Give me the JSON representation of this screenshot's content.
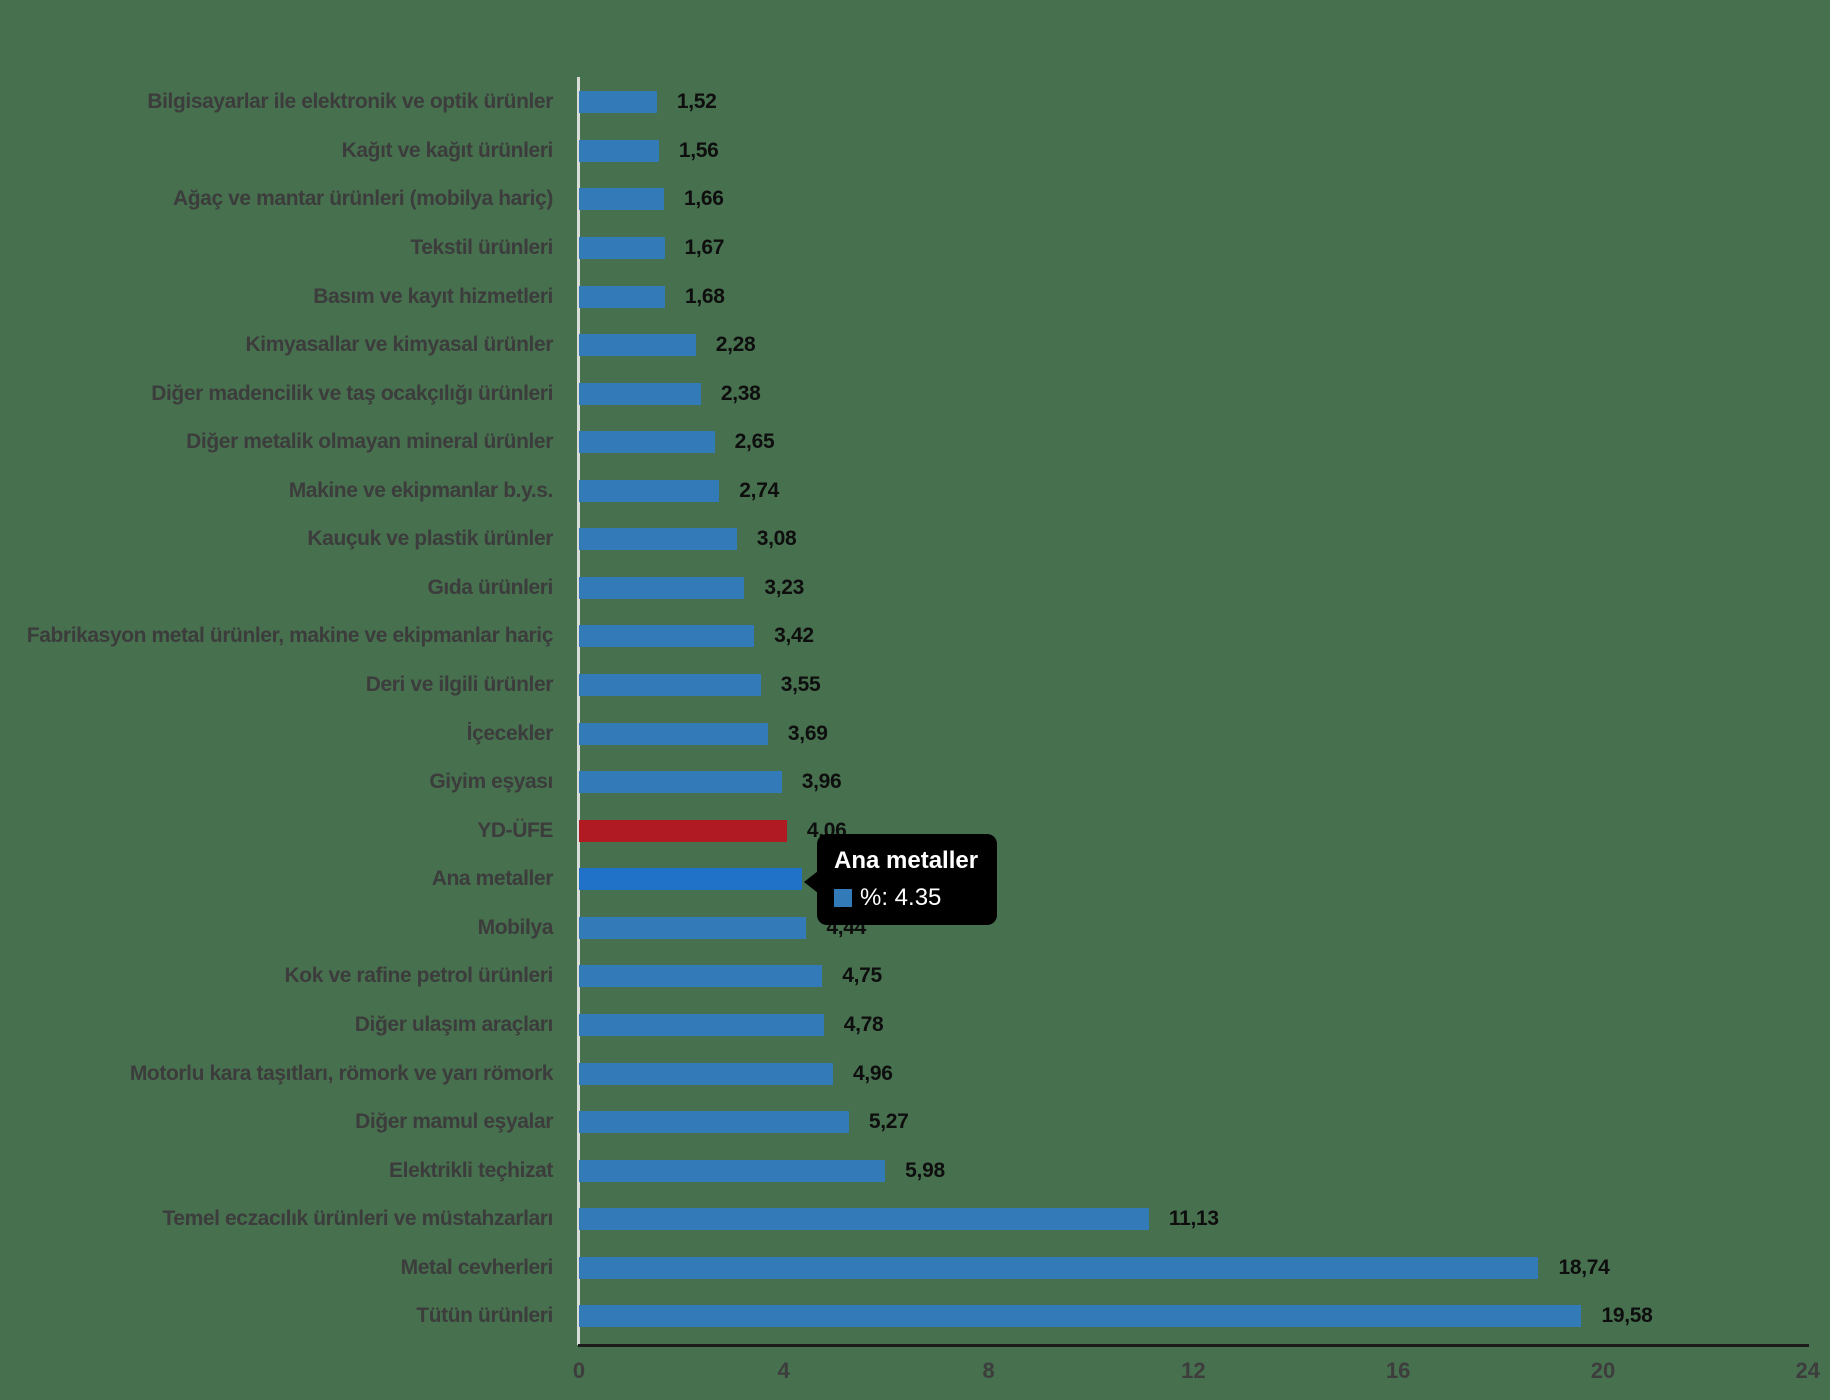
{
  "chart_data": {
    "type": "bar",
    "orientation": "horizontal",
    "title": "",
    "xlabel": "",
    "ylabel": "",
    "xlim": [
      0,
      24
    ],
    "x_ticks": [
      0,
      4,
      8,
      12,
      16,
      20,
      24
    ],
    "grid": false,
    "legend": false,
    "bar_colors": {
      "default": "#337AB9",
      "hover": "#1F72C8",
      "reference": "#B01B23"
    },
    "rows": [
      {
        "label": "Bilgisayarlar ile elektronik ve optik ürünler",
        "value": 1.52,
        "display": "1,52",
        "style": "default"
      },
      {
        "label": "Kağıt ve kağıt ürünleri",
        "value": 1.56,
        "display": "1,56",
        "style": "default"
      },
      {
        "label": "Ağaç ve mantar ürünleri (mobilya hariç)",
        "value": 1.66,
        "display": "1,66",
        "style": "default"
      },
      {
        "label": "Tekstil ürünleri",
        "value": 1.67,
        "display": "1,67",
        "style": "default"
      },
      {
        "label": "Basım ve kayıt hizmetleri",
        "value": 1.68,
        "display": "1,68",
        "style": "default"
      },
      {
        "label": "Kimyasallar ve kimyasal ürünler",
        "value": 2.28,
        "display": "2,28",
        "style": "default"
      },
      {
        "label": "Diğer madencilik ve taş ocakçılığı ürünleri",
        "value": 2.38,
        "display": "2,38",
        "style": "default"
      },
      {
        "label": "Diğer metalik olmayan mineral ürünler",
        "value": 2.65,
        "display": "2,65",
        "style": "default"
      },
      {
        "label": "Makine ve ekipmanlar b.y.s.",
        "value": 2.74,
        "display": "2,74",
        "style": "default"
      },
      {
        "label": "Kauçuk ve plastik ürünler",
        "value": 3.08,
        "display": "3,08",
        "style": "default"
      },
      {
        "label": "Gıda ürünleri",
        "value": 3.23,
        "display": "3,23",
        "style": "default"
      },
      {
        "label": "Fabrikasyon metal ürünler, makine ve ekipmanlar hariç",
        "value": 3.42,
        "display": "3,42",
        "style": "default"
      },
      {
        "label": "Deri ve ilgili ürünler",
        "value": 3.55,
        "display": "3,55",
        "style": "default"
      },
      {
        "label": "İçecekler",
        "value": 3.69,
        "display": "3,69",
        "style": "default"
      },
      {
        "label": "Giyim eşyası",
        "value": 3.96,
        "display": "3,96",
        "style": "default"
      },
      {
        "label": "YD-ÜFE",
        "value": 4.06,
        "display": "4,06",
        "style": "reference"
      },
      {
        "label": "Ana metaller",
        "value": 4.35,
        "display": "4,35",
        "style": "hover"
      },
      {
        "label": "Mobilya",
        "value": 4.44,
        "display": "4,44",
        "style": "default"
      },
      {
        "label": "Kok ve rafine petrol ürünleri",
        "value": 4.75,
        "display": "4,75",
        "style": "default"
      },
      {
        "label": "Diğer ulaşım araçları",
        "value": 4.78,
        "display": "4,78",
        "style": "default"
      },
      {
        "label": "Motorlu kara taşıtları, römork ve yarı römork",
        "value": 4.96,
        "display": "4,96",
        "style": "default"
      },
      {
        "label": "Diğer mamul eşyalar",
        "value": 5.27,
        "display": "5,27",
        "style": "default"
      },
      {
        "label": "Elektrikli teçhizat",
        "value": 5.98,
        "display": "5,98",
        "style": "default"
      },
      {
        "label": "Temel eczacılık ürünleri ve müstahzarları",
        "value": 11.13,
        "display": "11,13",
        "style": "default"
      },
      {
        "label": "Metal cevherleri",
        "value": 18.74,
        "display": "18,74",
        "style": "default"
      },
      {
        "label": "Tütün ürünleri",
        "value": 19.58,
        "display": "19,58",
        "style": "default"
      }
    ]
  },
  "tooltip": {
    "title": "Ana metaller",
    "value_text": "%: 4.35",
    "swatch_color": "#337AB9"
  },
  "colors": {
    "background": "#47704F",
    "category_label": "#3c3c3c",
    "value_label": "#0e0e0e",
    "axis_line": "#E6E6E6",
    "baseline": "#1c1c1c",
    "tooltip_bg": "#000000",
    "tooltip_text": "#ffffff"
  }
}
